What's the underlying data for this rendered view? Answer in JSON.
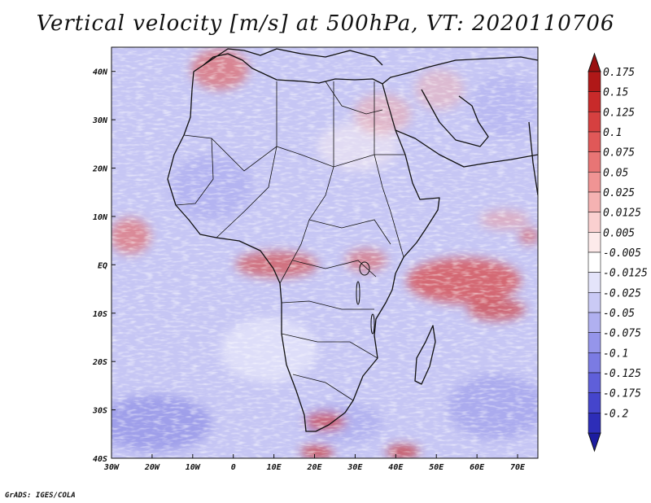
{
  "title": "Vertical velocity [m/s] at 500hPa, VT: 2020110706",
  "footer": "GrADS: IGES/COLA",
  "map": {
    "lon_range": [
      -30,
      75
    ],
    "lat_range": [
      -40,
      45
    ],
    "lat_ticks": [
      {
        "value": 40,
        "label": "40N"
      },
      {
        "value": 30,
        "label": "30N"
      },
      {
        "value": 20,
        "label": "20N"
      },
      {
        "value": 10,
        "label": "10N"
      },
      {
        "value": 0,
        "label": "EQ"
      },
      {
        "value": -10,
        "label": "10S"
      },
      {
        "value": -20,
        "label": "20S"
      },
      {
        "value": -30,
        "label": "30S"
      },
      {
        "value": -40,
        "label": "40S"
      }
    ],
    "lon_ticks": [
      {
        "value": -30,
        "label": "30W"
      },
      {
        "value": -20,
        "label": "20W"
      },
      {
        "value": -10,
        "label": "10W"
      },
      {
        "value": 0,
        "label": "0"
      },
      {
        "value": 10,
        "label": "10E"
      },
      {
        "value": 20,
        "label": "20E"
      },
      {
        "value": 30,
        "label": "30E"
      },
      {
        "value": 40,
        "label": "40E"
      },
      {
        "value": 50,
        "label": "50E"
      },
      {
        "value": 60,
        "label": "60E"
      },
      {
        "value": 70,
        "label": "70E"
      }
    ],
    "background_color": "#c6c6f4"
  },
  "colorbar": {
    "levels": [
      {
        "label": "0.175",
        "color": "#b01818"
      },
      {
        "label": "0.15",
        "color": "#c82a2a"
      },
      {
        "label": "0.125",
        "color": "#d64040"
      },
      {
        "label": "0.1",
        "color": "#e05858"
      },
      {
        "label": "0.075",
        "color": "#e87575"
      },
      {
        "label": "0.05",
        "color": "#f09494"
      },
      {
        "label": "0.025",
        "color": "#f5b2b2"
      },
      {
        "label": "0.0125",
        "color": "#fad0d0"
      },
      {
        "label": "0.005",
        "color": "#fdeaea"
      },
      {
        "label": "-0.005",
        "color": "#ffffff"
      },
      {
        "label": "-0.0125",
        "color": "#e4e4fa"
      },
      {
        "label": "-0.025",
        "color": "#cacaf5"
      },
      {
        "label": "-0.05",
        "color": "#b0b0f0"
      },
      {
        "label": "-0.075",
        "color": "#9595ea"
      },
      {
        "label": "-0.1",
        "color": "#7b7be3"
      },
      {
        "label": "-0.125",
        "color": "#5f5fd9"
      },
      {
        "label": "-0.175",
        "color": "#4545cc"
      },
      {
        "label": "-0.2",
        "color": "#2d2db8"
      }
    ],
    "top_arrow_color": "#9a1010",
    "bottom_arrow_color": "#1c1ca0"
  }
}
